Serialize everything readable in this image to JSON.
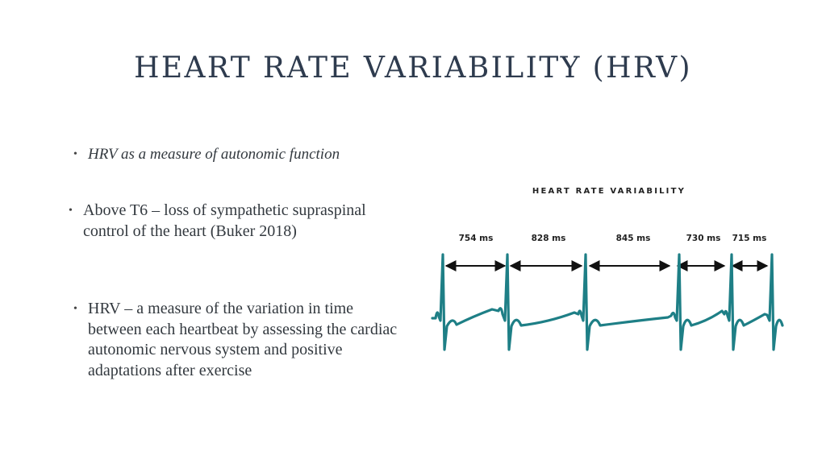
{
  "slide": {
    "title": "HEART RATE VARIABILITY (HRV)",
    "bullets": [
      {
        "marker": "•",
        "text": "HRV as a measure of autonomic function"
      },
      {
        "marker": "•",
        "text": "Above T6 – loss of sympathetic supraspinal control of the heart (Buker 2018)"
      },
      {
        "marker": "•",
        "text": "HRV – a measure of the variation in time between each heartbeat by assessing the cardiac autonomic nervous system and positive adaptations after exercise"
      }
    ]
  },
  "figure": {
    "title": "HEART RATE VARIABILITY",
    "intervals": [
      "754 ms",
      "828 ms",
      "845 ms",
      "730 ms",
      "715 ms"
    ],
    "colors": {
      "trace": "#1e7f86",
      "arrow": "#111111"
    }
  }
}
